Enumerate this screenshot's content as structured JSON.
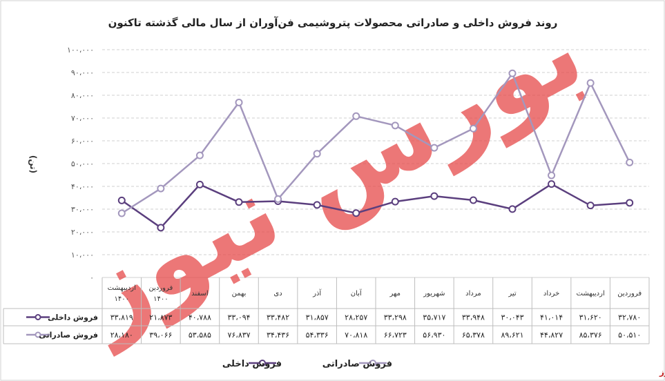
{
  "chart_data": {
    "type": "line",
    "title": "روند فروش داخلی و صادراتی محصولات پتروشیمی فن‌آوران از سال مالی گذشته تاکنون",
    "ylabel": "(تن)",
    "ylim": [
      0,
      100000
    ],
    "yticks": [
      "۰",
      "۱۰،۰۰۰",
      "۲۰،۰۰۰",
      "۳۰،۰۰۰",
      "۴۰،۰۰۰",
      "۵۰،۰۰۰",
      "۶۰،۰۰۰",
      "۷۰،۰۰۰",
      "۸۰،۰۰۰",
      "۹۰،۰۰۰",
      "۱۰۰،۰۰۰"
    ],
    "categories": [
      "فروردین",
      "اردیبهشت",
      "خرداد",
      "تیر",
      "مرداد",
      "شهریور",
      "مهر",
      "آبان",
      "آذر",
      "دی",
      "بهمن",
      "اسفند",
      "فروردین ۱۴۰۰",
      "اردیبهشت ۱۴۰۰"
    ],
    "series": [
      {
        "name": "فروش داخلی",
        "color": "#5b3f7e",
        "values": [
          32780,
          31620,
          41014,
          30043,
          33948,
          35717,
          33298,
          28257,
          31857,
          33482,
          33094,
          40788,
          21873,
          33819
        ],
        "labels": [
          "۳۲،۷۸۰",
          "۳۱،۶۲۰",
          "۴۱،۰۱۴",
          "۳۰،۰۴۳",
          "۳۳،۹۴۸",
          "۳۵،۷۱۷",
          "۳۳،۲۹۸",
          "۲۸،۲۵۷",
          "۳۱،۸۵۷",
          "۳۳،۴۸۲",
          "۳۳،۰۹۴",
          "۴۰،۷۸۸",
          "۲۱،۸۷۳",
          "۳۳،۸۱۹"
        ]
      },
      {
        "name": "فروش صادراتی",
        "color": "#a397bd",
        "values": [
          50510,
          85376,
          44827,
          89621,
          65378,
          56930,
          66723,
          70818,
          54336,
          34436,
          76837,
          53585,
          39066,
          28180
        ],
        "labels": [
          "۵۰،۵۱۰",
          "۸۵،۳۷۶",
          "۴۴،۸۲۷",
          "۸۹،۶۲۱",
          "۶۵،۳۷۸",
          "۵۶،۹۳۰",
          "۶۶،۷۲۳",
          "۷۰،۸۱۸",
          "۵۴،۳۳۶",
          "۳۴،۴۳۶",
          "۷۶،۸۳۷",
          "۵۳،۵۸۵",
          "۳۹،۰۶۶",
          "۲۸،۱۸۰"
        ]
      }
    ],
    "legend_position": "bottom",
    "watermark": "بورس نیوز",
    "source": "بورس نیوز"
  }
}
